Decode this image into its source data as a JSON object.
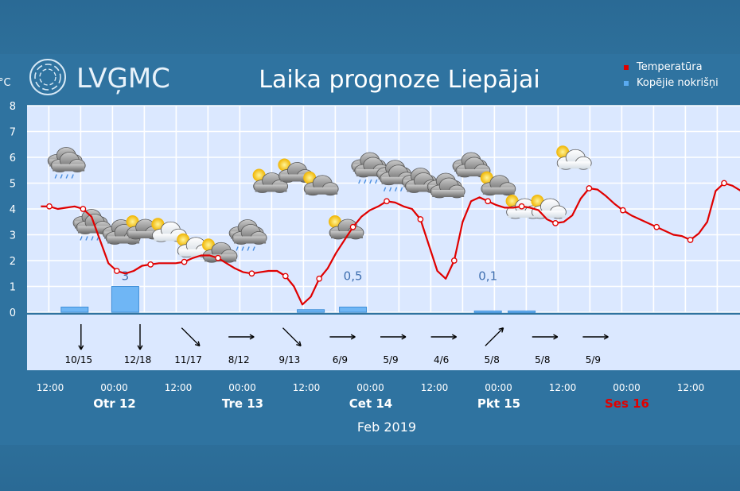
{
  "header": {
    "logo_text": "LVĢMC",
    "title": "Laika prognoze Liepājai",
    "unit_label": "°C"
  },
  "legend": [
    {
      "label": "Temperatūra",
      "color": "#e00000"
    },
    {
      "label": "Kopējie nokrišņi",
      "color": "#5aaaf0"
    }
  ],
  "chart_data": {
    "type": "line",
    "title": "Laika prognoze Liepājai",
    "ylabel": "°C",
    "ylim": [
      0,
      8
    ],
    "yticks": [
      0,
      1,
      2,
      3,
      4,
      5,
      6,
      7,
      8
    ],
    "grid": true,
    "legend_position": "top-right",
    "xlabel": "Feb 2019",
    "x_ticks": [
      "12:00",
      "00:00",
      "12:00",
      "00:00",
      "12:00",
      "00:00",
      "12:00",
      "00:00",
      "12:00",
      "00:00",
      "12:00"
    ],
    "day_labels": [
      {
        "label": "Otr 12",
        "color": "#ffffff"
      },
      {
        "label": "Tre 13",
        "color": "#ffffff"
      },
      {
        "label": "Cet 14",
        "color": "#ffffff"
      },
      {
        "label": "Pkt 15",
        "color": "#ffffff"
      },
      {
        "label": "Ses 16",
        "color": "#e00000"
      }
    ],
    "series": [
      {
        "name": "Temperatūra",
        "color": "#e00000",
        "type": "line",
        "x": [
          -1,
          0,
          1,
          2,
          3,
          4,
          5,
          6,
          7,
          8,
          9,
          10,
          11,
          12,
          13,
          14,
          15,
          16,
          17,
          18,
          19,
          20,
          21,
          22,
          23,
          24,
          25,
          26,
          27,
          28,
          29,
          30,
          31,
          32,
          33,
          34,
          35,
          36,
          37,
          38,
          39,
          40,
          41,
          42,
          43,
          44,
          45,
          46,
          47,
          48,
          49,
          50,
          51,
          52,
          53,
          54,
          55,
          56,
          57,
          58,
          59,
          60,
          61,
          62,
          63,
          64,
          65,
          66,
          67,
          68,
          69,
          70,
          71,
          72,
          73,
          74,
          75,
          76,
          77,
          78,
          79,
          80,
          81,
          82,
          83,
          84,
          85
        ],
        "values": [
          4.1,
          4.1,
          4.0,
          4.05,
          4.1,
          4.0,
          3.7,
          2.8,
          1.9,
          1.6,
          1.5,
          1.6,
          1.8,
          1.85,
          1.9,
          1.9,
          1.9,
          1.95,
          2.1,
          2.2,
          2.2,
          2.1,
          1.9,
          1.7,
          1.55,
          1.5,
          1.55,
          1.6,
          1.6,
          1.4,
          1.0,
          0.3,
          0.6,
          1.3,
          1.7,
          2.3,
          2.8,
          3.3,
          3.7,
          3.95,
          4.1,
          4.3,
          4.25,
          4.1,
          4.0,
          3.6,
          2.6,
          1.6,
          1.3,
          2.0,
          3.5,
          4.3,
          4.45,
          4.3,
          4.15,
          4.05,
          4.05,
          4.1,
          4.05,
          3.95,
          3.6,
          3.45,
          3.5,
          3.75,
          4.4,
          4.8,
          4.75,
          4.5,
          4.2,
          3.95,
          3.75,
          3.6,
          3.45,
          3.3,
          3.15,
          3.0,
          2.95,
          2.8,
          3.05,
          3.5,
          4.7,
          5.0,
          4.9,
          4.7,
          4.4,
          4.1,
          3.8
        ]
      },
      {
        "name": "Kopējie nokrišņi",
        "color": "#5aaaf0",
        "type": "bar",
        "x": [
          3,
          9,
          31,
          36,
          52,
          56
        ],
        "values": [
          0.2,
          1.0,
          0.1,
          0.2,
          0.05,
          0.05
        ]
      }
    ],
    "precip_labels": [
      {
        "x": 9,
        "text": "3"
      },
      {
        "x": 36,
        "text": "0,5"
      },
      {
        "x": 52,
        "text": "0,1"
      }
    ],
    "wind": [
      {
        "x": 3,
        "label": "10/15",
        "dir": 180
      },
      {
        "x": 10,
        "label": "12/18",
        "dir": 180
      },
      {
        "x": 16,
        "label": "11/17",
        "dir": 135
      },
      {
        "x": 22,
        "label": "8/12",
        "dir": 90
      },
      {
        "x": 28,
        "label": "9/13",
        "dir": 135
      },
      {
        "x": 34,
        "label": "6/9",
        "dir": 90
      },
      {
        "x": 40,
        "label": "5/9",
        "dir": 90
      },
      {
        "x": 46,
        "label": "4/6",
        "dir": 90
      },
      {
        "x": 52,
        "label": "5/8",
        "dir": 45
      },
      {
        "x": 58,
        "label": "5/8",
        "dir": 90
      },
      {
        "x": 64,
        "label": "5/9",
        "dir": 90
      }
    ],
    "weather_icons": [
      {
        "x": 2,
        "y": 5.8,
        "type": "cloud-rain-icon"
      },
      {
        "x": 5,
        "y": 3.4,
        "type": "cloud-rain-icon"
      },
      {
        "x": 8.5,
        "y": 3.0,
        "type": "dark-clouds-icon"
      },
      {
        "x": 11,
        "y": 3.2,
        "type": "sun-dark-cloud-icon"
      },
      {
        "x": 14,
        "y": 3.1,
        "type": "sun-white-cloud-icon"
      },
      {
        "x": 17,
        "y": 2.5,
        "type": "sun-white-cloud-icon"
      },
      {
        "x": 20,
        "y": 2.3,
        "type": "sun-dark-cloud-icon"
      },
      {
        "x": 23.5,
        "y": 3.0,
        "type": "cloud-rain-icon"
      },
      {
        "x": 26,
        "y": 5.0,
        "type": "sun-dark-cloud-icon"
      },
      {
        "x": 29,
        "y": 5.4,
        "type": "sun-dark-cloud-icon"
      },
      {
        "x": 32,
        "y": 4.9,
        "type": "sun-dark-cloud-icon"
      },
      {
        "x": 35,
        "y": 3.2,
        "type": "sun-dark-cloud-icon"
      },
      {
        "x": 38,
        "y": 5.6,
        "type": "cloud-rain-icon"
      },
      {
        "x": 41,
        "y": 5.3,
        "type": "cloud-rain-icon"
      },
      {
        "x": 44,
        "y": 5.0,
        "type": "dark-clouds-icon"
      },
      {
        "x": 47,
        "y": 4.8,
        "type": "dark-clouds-icon"
      },
      {
        "x": 50,
        "y": 5.6,
        "type": "dark-clouds-icon"
      },
      {
        "x": 53,
        "y": 4.9,
        "type": "sun-dark-cloud-icon"
      },
      {
        "x": 56,
        "y": 4.0,
        "type": "sun-white-cloud-icon"
      },
      {
        "x": 59,
        "y": 4.0,
        "type": "sun-white-cloud-icon"
      },
      {
        "x": 62,
        "y": 5.9,
        "type": "sun-white-cloud-icon"
      }
    ]
  }
}
